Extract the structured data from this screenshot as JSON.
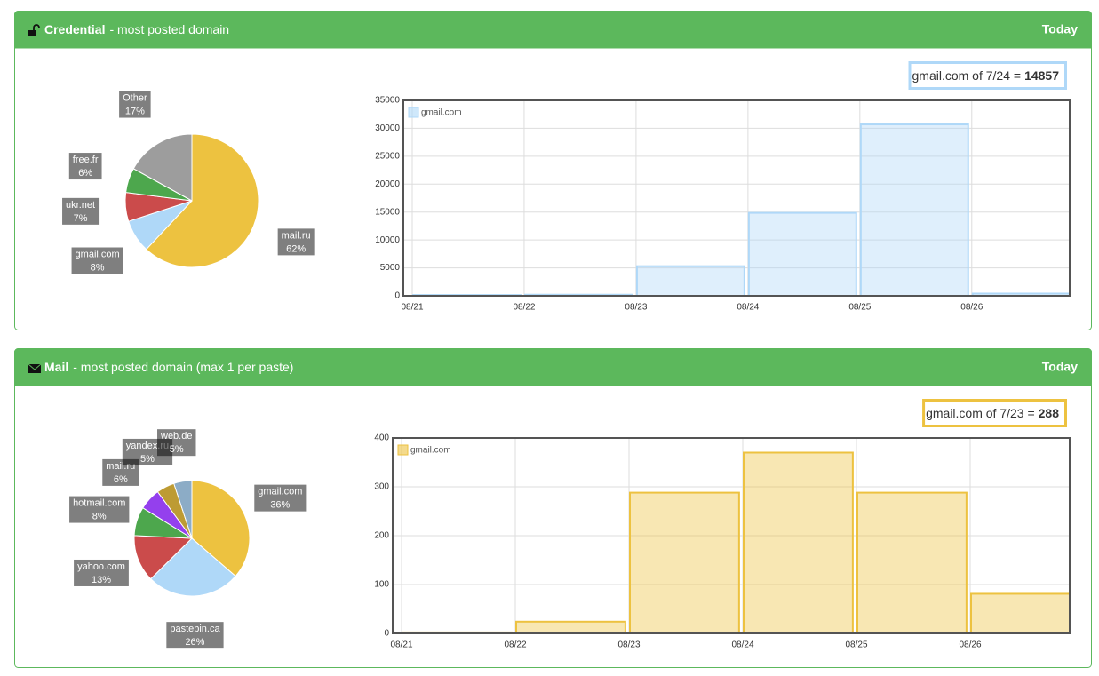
{
  "panels": [
    {
      "title": "Credential",
      "subtitle": "- most posted domain",
      "period": "Today",
      "tooltip": {
        "text": "gmail.com of 7/24 =",
        "value": 14857,
        "color": "#afd8f8"
      },
      "pie": {
        "type": "pie",
        "labels": [
          "mail.ru",
          "gmail.com",
          "ukr.net",
          "free.fr",
          "Other"
        ],
        "values": [
          62,
          8,
          7,
          6,
          17
        ],
        "value_labels": [
          "62%",
          "8%",
          "7%",
          "6%",
          "17%"
        ],
        "colors": [
          "#edc240",
          "#afd8f8",
          "#cb4b4b",
          "#4da74d",
          "#9d9d9d"
        ]
      },
      "bar": {
        "type": "bar",
        "categories": [
          "08/21",
          "08/22",
          "08/23",
          "08/24",
          "08/25",
          "08/26"
        ],
        "series": [
          {
            "name": "gmail.com",
            "color": "#afd8f8",
            "values": [
              150,
              200,
              5300,
              14857,
              30700,
              400
            ]
          }
        ],
        "ylim": [
          0,
          35000
        ],
        "yticks": [
          0,
          5000,
          10000,
          15000,
          20000,
          25000,
          30000,
          35000
        ],
        "grid": true
      }
    },
    {
      "title": "Mail",
      "subtitle": "- most posted domain (max 1 per paste)",
      "period": "Today",
      "tooltip": {
        "text": "gmail.com of 7/23 =",
        "value": 288,
        "color": "#edc240"
      },
      "pie": {
        "type": "pie",
        "labels": [
          "gmail.com",
          "pastebin.ca",
          "yahoo.com",
          "hotmail.com",
          "mail.ru",
          "yandex.ru",
          "web.de"
        ],
        "values": [
          36,
          26,
          13,
          8,
          6,
          5,
          5
        ],
        "value_labels": [
          "36%",
          "26%",
          "13%",
          "8%",
          "6%",
          "5%",
          "5%"
        ],
        "colors": [
          "#edc240",
          "#afd8f8",
          "#cb4b4b",
          "#4da74d",
          "#9440ed",
          "#bd9b33",
          "#8cacc6"
        ]
      },
      "bar": {
        "type": "bar",
        "categories": [
          "08/21",
          "08/22",
          "08/23",
          "08/24",
          "08/25",
          "08/26"
        ],
        "series": [
          {
            "name": "gmail.com",
            "color": "#edc240",
            "values": [
              2,
              24,
              288,
              370,
              288,
              81
            ]
          }
        ],
        "ylim": [
          0,
          400
        ],
        "yticks": [
          0,
          100,
          200,
          300,
          400
        ],
        "grid": true
      }
    }
  ]
}
